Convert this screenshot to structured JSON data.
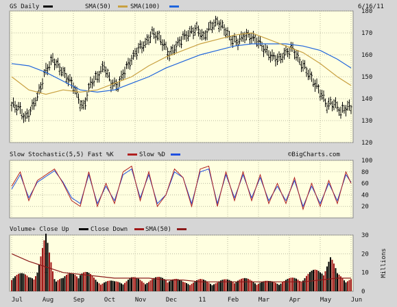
{
  "header": {
    "symbol": "GS Daily",
    "sma50_label": "SMA(50)",
    "sma100_label": "SMA(100)",
    "date": "6/16/11"
  },
  "stoch_panel": {
    "label": "Slow Stochastic(5,5) Fast %K",
    "slow_label": "Slow %D",
    "watermark": "©BigCharts.com"
  },
  "volume_panel": {
    "label": "Volume+ Close Up",
    "down_label": "Close Down",
    "sma_label": "SMA(50)",
    "unit_label": "Millions"
  },
  "colors": {
    "panel_bg": "#ffffe0",
    "frame_bg": "#d6d6d6",
    "sma50": "#c8a040",
    "sma100": "#1e64dc",
    "stoch_k": "#b02020",
    "stoch_d": "#2050e0",
    "vol_up": "#000000",
    "vol_down": "#a01818",
    "vol_sma": "#8b1a1a"
  },
  "chart_data": [
    {
      "type": "ohlc",
      "title": "GS Daily",
      "ylim": [
        120,
        180
      ],
      "yticks": [
        120,
        130,
        140,
        150,
        160,
        170,
        180
      ],
      "x_labels": [
        "Jul",
        "Aug",
        "Sep",
        "Oct",
        "Nov",
        "Dec",
        "11",
        "Feb",
        "Mar",
        "Apr",
        "May",
        "Jun"
      ],
      "grid": true,
      "series": [
        {
          "name": "GS Daily",
          "keypoints": [
            [
              0,
              137
            ],
            [
              4,
              136
            ],
            [
              8,
              131
            ],
            [
              12,
              136
            ],
            [
              16,
              143
            ],
            [
              20,
              153
            ],
            [
              24,
              158
            ],
            [
              28,
              154
            ],
            [
              32,
              150
            ],
            [
              36,
              146
            ],
            [
              40,
              138
            ],
            [
              42,
              136
            ],
            [
              46,
              147
            ],
            [
              50,
              150
            ],
            [
              54,
              155
            ],
            [
              58,
              147
            ],
            [
              62,
              146
            ],
            [
              66,
              153
            ],
            [
              70,
              158
            ],
            [
              74,
              163
            ],
            [
              78,
              165
            ],
            [
              82,
              170
            ],
            [
              86,
              168
            ],
            [
              90,
              163
            ],
            [
              92,
              160
            ],
            [
              96,
              164
            ],
            [
              100,
              168
            ],
            [
              104,
              170
            ],
            [
              108,
              172
            ],
            [
              112,
              168
            ],
            [
              116,
              173
            ],
            [
              120,
              175
            ],
            [
              124,
              172
            ],
            [
              128,
              167
            ],
            [
              132,
              166
            ],
            [
              136,
              169
            ],
            [
              140,
              168
            ],
            [
              144,
              166
            ],
            [
              148,
              162
            ],
            [
              152,
              159
            ],
            [
              156,
              158
            ],
            [
              160,
              161
            ],
            [
              164,
              163
            ],
            [
              168,
              157
            ],
            [
              172,
              153
            ],
            [
              176,
              148
            ],
            [
              180,
              143
            ],
            [
              184,
              137
            ],
            [
              188,
              138
            ],
            [
              192,
              134
            ],
            [
              195,
              136
            ],
            [
              198,
              136
            ]
          ]
        },
        {
          "name": "SMA(50)",
          "values": [
            [
              0,
              150
            ],
            [
              10,
              144
            ],
            [
              20,
              142
            ],
            [
              30,
              144
            ],
            [
              40,
              143
            ],
            [
              50,
              144
            ],
            [
              60,
              147
            ],
            [
              70,
              150
            ],
            [
              80,
              155
            ],
            [
              90,
              159
            ],
            [
              100,
              162
            ],
            [
              110,
              165
            ],
            [
              120,
              167
            ],
            [
              130,
              169
            ],
            [
              140,
              170
            ],
            [
              150,
              167
            ],
            [
              160,
              164
            ],
            [
              170,
              161
            ],
            [
              180,
              156
            ],
            [
              190,
              150
            ],
            [
              198,
              146
            ]
          ]
        },
        {
          "name": "SMA(100)",
          "values": [
            [
              0,
              156
            ],
            [
              10,
              155
            ],
            [
              20,
              152
            ],
            [
              30,
              148
            ],
            [
              40,
              144
            ],
            [
              50,
              143
            ],
            [
              60,
              144
            ],
            [
              70,
              147
            ],
            [
              80,
              150
            ],
            [
              90,
              154
            ],
            [
              100,
              157
            ],
            [
              110,
              160
            ],
            [
              120,
              162
            ],
            [
              130,
              164
            ],
            [
              140,
              165
            ],
            [
              150,
              165
            ],
            [
              160,
              165
            ],
            [
              170,
              164
            ],
            [
              180,
              162
            ],
            [
              190,
              158
            ],
            [
              198,
              154
            ]
          ]
        }
      ]
    },
    {
      "type": "line",
      "title": "Slow Stochastic(5,5) Fast %K",
      "ylim": [
        0,
        100
      ],
      "yticks": [
        20,
        40,
        60,
        80,
        100
      ],
      "series": [
        {
          "name": "Fast %K",
          "values": [
            [
              0,
              55
            ],
            [
              5,
              80
            ],
            [
              10,
              30
            ],
            [
              15,
              65
            ],
            [
              20,
              75
            ],
            [
              25,
              85
            ],
            [
              30,
              60
            ],
            [
              35,
              30
            ],
            [
              40,
              20
            ],
            [
              45,
              80
            ],
            [
              50,
              20
            ],
            [
              55,
              60
            ],
            [
              60,
              25
            ],
            [
              65,
              80
            ],
            [
              70,
              90
            ],
            [
              75,
              30
            ],
            [
              80,
              80
            ],
            [
              85,
              20
            ],
            [
              90,
              40
            ],
            [
              95,
              85
            ],
            [
              100,
              70
            ],
            [
              105,
              20
            ],
            [
              110,
              85
            ],
            [
              115,
              90
            ],
            [
              120,
              20
            ],
            [
              125,
              80
            ],
            [
              130,
              30
            ],
            [
              135,
              80
            ],
            [
              140,
              30
            ],
            [
              145,
              75
            ],
            [
              150,
              25
            ],
            [
              155,
              60
            ],
            [
              160,
              25
            ],
            [
              165,
              70
            ],
            [
              170,
              15
            ],
            [
              175,
              60
            ],
            [
              180,
              20
            ],
            [
              185,
              65
            ],
            [
              190,
              25
            ],
            [
              195,
              80
            ],
            [
              198,
              60
            ]
          ]
        },
        {
          "name": "Slow %D",
          "values": [
            [
              0,
              50
            ],
            [
              5,
              75
            ],
            [
              10,
              35
            ],
            [
              15,
              62
            ],
            [
              20,
              72
            ],
            [
              25,
              82
            ],
            [
              30,
              62
            ],
            [
              35,
              35
            ],
            [
              40,
              25
            ],
            [
              45,
              75
            ],
            [
              50,
              25
            ],
            [
              55,
              55
            ],
            [
              60,
              30
            ],
            [
              65,
              75
            ],
            [
              70,
              85
            ],
            [
              75,
              35
            ],
            [
              80,
              75
            ],
            [
              85,
              25
            ],
            [
              90,
              40
            ],
            [
              95,
              80
            ],
            [
              100,
              70
            ],
            [
              105,
              25
            ],
            [
              110,
              80
            ],
            [
              115,
              85
            ],
            [
              120,
              25
            ],
            [
              125,
              75
            ],
            [
              130,
              35
            ],
            [
              135,
              75
            ],
            [
              140,
              35
            ],
            [
              145,
              70
            ],
            [
              150,
              30
            ],
            [
              155,
              55
            ],
            [
              160,
              30
            ],
            [
              165,
              65
            ],
            [
              170,
              20
            ],
            [
              175,
              55
            ],
            [
              180,
              25
            ],
            [
              185,
              60
            ],
            [
              190,
              30
            ],
            [
              195,
              75
            ],
            [
              198,
              62
            ]
          ]
        }
      ]
    },
    {
      "type": "bar",
      "title": "Volume+ Close Up",
      "ylabel": "Millions",
      "ylim": [
        0,
        30
      ],
      "yticks": [
        0,
        10,
        20,
        30
      ],
      "series": [
        {
          "name": "Volume",
          "keypoints": [
            [
              0,
              10
            ],
            [
              10,
              8
            ],
            [
              15,
              12
            ],
            [
              20,
              28
            ],
            [
              25,
              9
            ],
            [
              30,
              7
            ],
            [
              40,
              12
            ],
            [
              50,
              6
            ],
            [
              60,
              5
            ],
            [
              70,
              7
            ],
            [
              80,
              6
            ],
            [
              90,
              8
            ],
            [
              100,
              5
            ],
            [
              110,
              6
            ],
            [
              120,
              5
            ],
            [
              130,
              7
            ],
            [
              140,
              6
            ],
            [
              150,
              5
            ],
            [
              160,
              6
            ],
            [
              170,
              8
            ],
            [
              180,
              12
            ],
            [
              186,
              18
            ],
            [
              190,
              9
            ],
            [
              198,
              7
            ]
          ]
        },
        {
          "name": "SMA(50)",
          "values": [
            [
              0,
              20
            ],
            [
              10,
              16
            ],
            [
              20,
              13
            ],
            [
              30,
              10
            ],
            [
              40,
              9
            ],
            [
              50,
              8
            ],
            [
              60,
              7
            ],
            [
              70,
              7
            ],
            [
              80,
              7
            ],
            [
              90,
              6
            ],
            [
              100,
              6
            ],
            [
              110,
              5
            ],
            [
              120,
              5
            ],
            [
              130,
              5
            ],
            [
              140,
              5
            ],
            [
              150,
              5
            ],
            [
              160,
              5
            ],
            [
              170,
              5
            ],
            [
              180,
              6
            ],
            [
              190,
              7
            ],
            [
              198,
              7
            ]
          ]
        }
      ]
    }
  ]
}
